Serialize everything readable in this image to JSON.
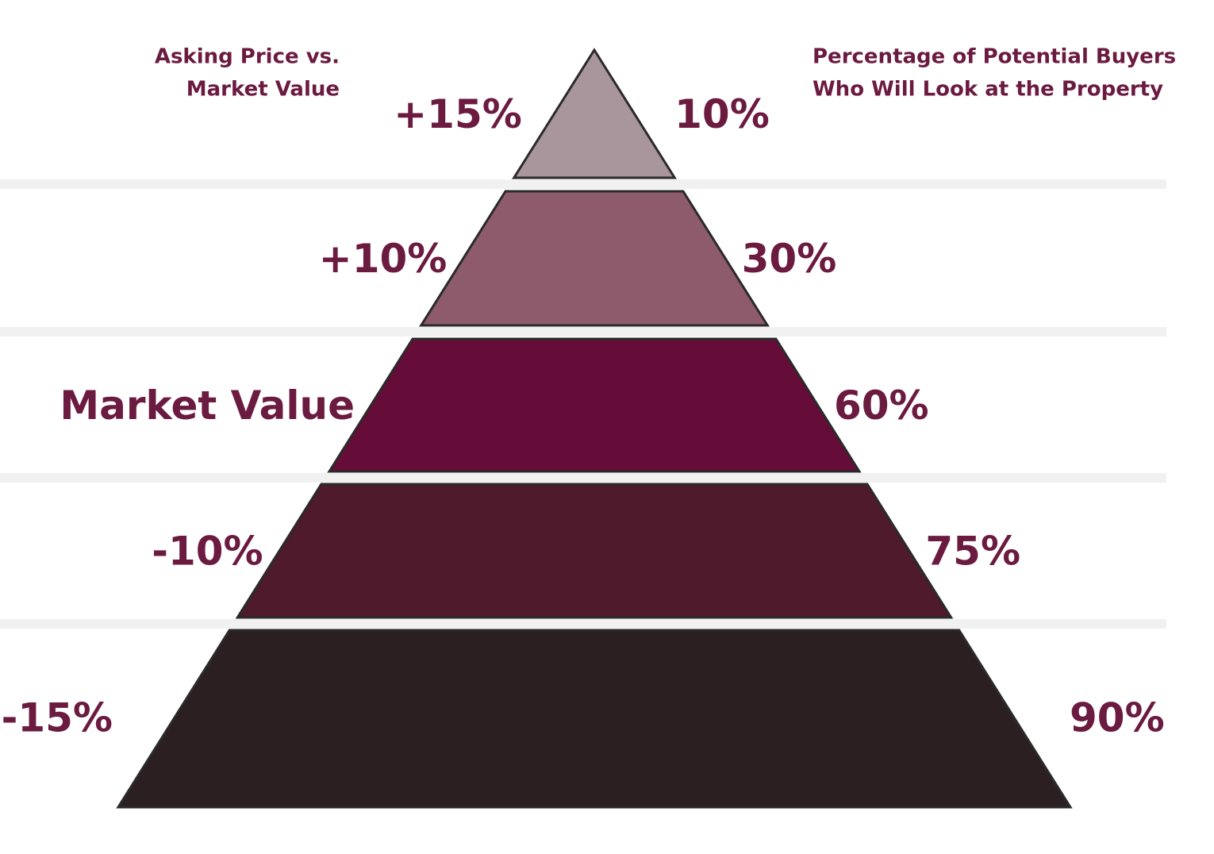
{
  "left_title": [
    "Asking Price vs.",
    "Market Value"
  ],
  "right_title": [
    "Percentage of Potential Buyers",
    "Who Will Look at the Property"
  ],
  "levels": [
    {
      "left": "+15%",
      "right": "10%",
      "color": "#a8969c"
    },
    {
      "left": "+10%",
      "right": "30%",
      "color": "#8d5b6b"
    },
    {
      "left": "Market Value",
      "right": "60%",
      "color": "#660c38"
    },
    {
      "left": "-10%",
      "right": "75%",
      "color": "#4e1a2c"
    },
    {
      "left": "-15%",
      "right": "90%",
      "color": "#2b1f22"
    }
  ]
}
